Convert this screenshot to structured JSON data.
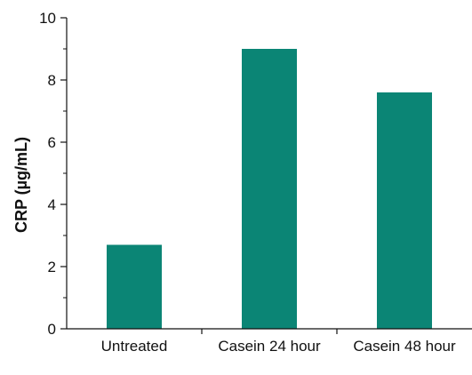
{
  "chart_data": {
    "type": "bar",
    "categories": [
      "Untreated",
      "Casein 24 hour",
      "Casein 48 hour"
    ],
    "values": [
      2.7,
      9.0,
      7.6
    ],
    "title": "",
    "xlabel": "",
    "ylabel": "CRP (µg/mL)",
    "ylim": [
      0,
      10
    ],
    "yticks": [
      0,
      2,
      4,
      6,
      8,
      10
    ],
    "grid": false,
    "bar_color": "#0b8575"
  }
}
